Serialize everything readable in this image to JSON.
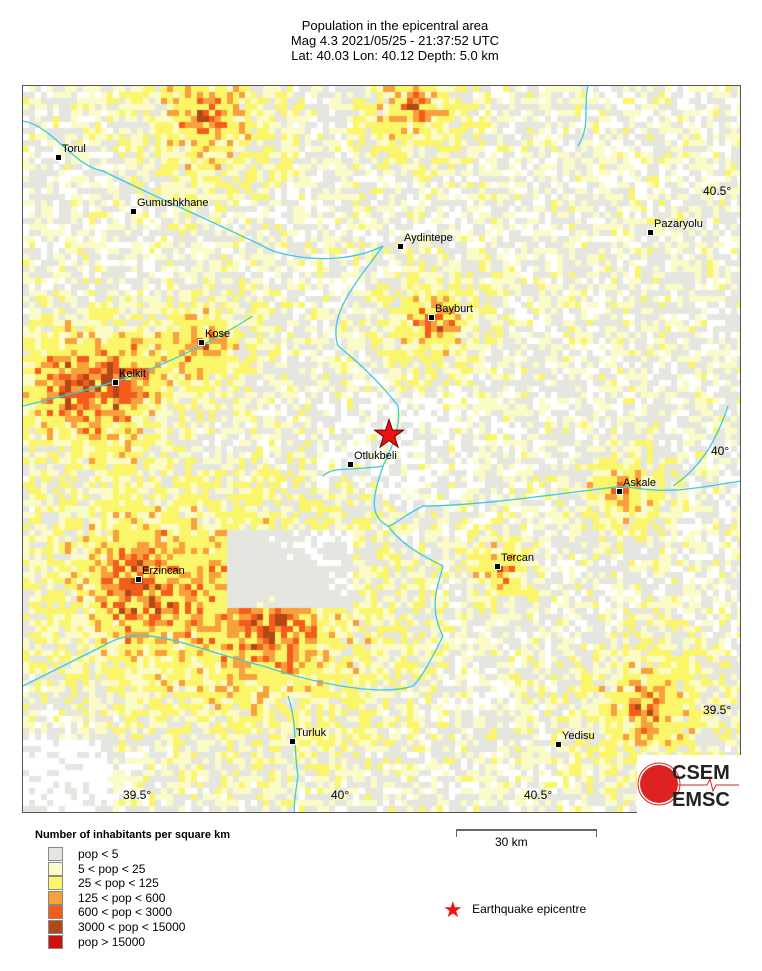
{
  "header": {
    "title": "Population in the epicentral area",
    "line2": "Mag 4.3  2021/05/25 - 21:37:52 UTC",
    "line3": "Lat: 40.03   Lon:  40.12    Depth:  5.0 km"
  },
  "map": {
    "epicentre": {
      "lat": 40.03,
      "lon": 40.12
    },
    "cities": [
      "Torul",
      "Gumushkhane",
      "Aydintepe",
      "Pazaryolu",
      "Bayburt",
      "Kose",
      "Kelkit",
      "Otlukbeli",
      "Askale",
      "Erzincan",
      "Tercan",
      "Turluk",
      "Yedisu"
    ],
    "lon_ticks": [
      "39.5°",
      "40°",
      "40.5°"
    ],
    "lat_ticks": [
      "40.5°",
      "40°",
      "39.5°"
    ],
    "colors": {
      "river": "#3cc8e6",
      "epicentre": "#ee1111"
    }
  },
  "logo": {
    "text_top": "CSEM",
    "text_bottom": "EMSC"
  },
  "legend": {
    "title": "Number of inhabitants per square km",
    "items": [
      {
        "label": "pop < 5",
        "color": "#e6e6e0"
      },
      {
        "label": "5 < pop < 25",
        "color": "#fbfbc8"
      },
      {
        "label": "25 < pop < 125",
        "color": "#fbf56a"
      },
      {
        "label": "125 < pop < 600",
        "color": "#f8a03c"
      },
      {
        "label": "600 < pop < 3000",
        "color": "#f45c1c"
      },
      {
        "label": "3000 < pop < 15000",
        "color": "#b04818"
      },
      {
        "label": "pop > 15000",
        "color": "#d01010"
      }
    ]
  },
  "scale": {
    "label": "30 km"
  },
  "epicentre_legend": {
    "label": "Earthquake epicentre"
  }
}
